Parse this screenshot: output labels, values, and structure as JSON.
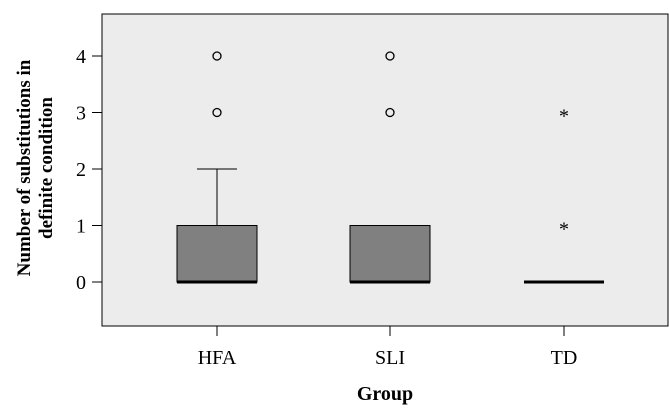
{
  "chart_data": {
    "type": "boxplot",
    "title": "",
    "xlabel": "Group",
    "ylabel_lines": [
      "Number of substitutions in",
      "definite condition"
    ],
    "ylim": [
      -0.8,
      4.75
    ],
    "yticks": [
      0,
      1,
      2,
      3,
      4
    ],
    "categories": [
      "HFA",
      "SLI",
      "TD"
    ],
    "box_color": "#808080",
    "plot_background": "#ececec",
    "grid": false,
    "boxes": [
      {
        "category": "HFA",
        "q1": 0,
        "median": 0,
        "q3": 1,
        "whisker_low": 0,
        "whisker_high": 2,
        "outliers": [
          {
            "value": 3,
            "marker": "circle"
          },
          {
            "value": 4,
            "marker": "circle"
          }
        ]
      },
      {
        "category": "SLI",
        "q1": 0,
        "median": 0,
        "q3": 1,
        "whisker_low": 0,
        "whisker_high": 1,
        "outliers": [
          {
            "value": 3,
            "marker": "circle"
          },
          {
            "value": 4,
            "marker": "circle"
          }
        ]
      },
      {
        "category": "TD",
        "q1": 0,
        "median": 0,
        "q3": 0,
        "whisker_low": 0,
        "whisker_high": 0,
        "outliers": [
          {
            "value": 1,
            "marker": "star"
          },
          {
            "value": 3,
            "marker": "star"
          }
        ]
      }
    ]
  }
}
